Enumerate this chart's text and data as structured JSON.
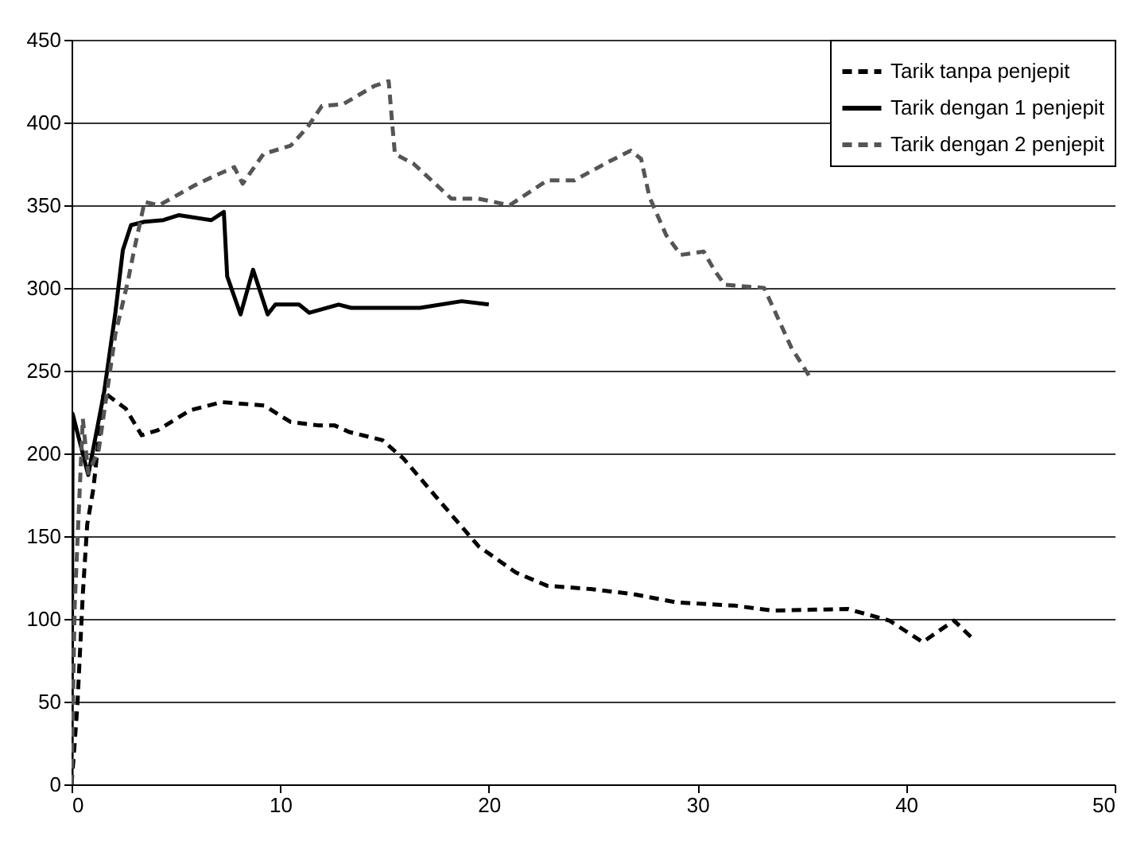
{
  "chart_data": {
    "type": "line",
    "xlim": [
      0,
      50
    ],
    "xticks": [
      0,
      10,
      20,
      30,
      40,
      50
    ],
    "ylim": [
      0,
      450
    ],
    "yticks": [
      0,
      50,
      100,
      150,
      200,
      250,
      300,
      350,
      400,
      450
    ],
    "grid": "y",
    "legend": "top right",
    "marker": "none",
    "series": [
      {
        "name": "Tarik tanpa penjepit",
        "color": "#000000",
        "line_style": "dashed",
        "x": [
          0,
          0.15,
          0.28,
          0.54,
          0.75,
          1.05,
          1.54,
          2.6,
          3.36,
          4.13,
          5.67,
          7.2,
          9.23,
          10.5,
          11.8,
          12.6,
          13.3,
          14.9,
          15.9,
          18.0,
          19.5,
          21.3,
          22.8,
          24.9,
          26.9,
          29.0,
          31.8,
          33.6,
          37.2,
          39.2,
          40.8,
          42.3,
          43.2
        ],
        "values": [
          0,
          25,
          48,
          115,
          157,
          179,
          237,
          227,
          211,
          214,
          226,
          231,
          229,
          219,
          217,
          217,
          213,
          208,
          197,
          166,
          144,
          128,
          120,
          118,
          115,
          110,
          108,
          105,
          106,
          99,
          86,
          99,
          88
        ]
      },
      {
        "name": "Tarik dengan 1 penjepit",
        "color": "#000000",
        "line_style": "solid",
        "x": [
          0,
          0.05,
          0.8,
          1.56,
          2.1,
          2.46,
          2.85,
          3.5,
          4.4,
          5.15,
          6.7,
          7.3,
          7.46,
          8.1,
          8.7,
          9.4,
          9.77,
          10.9,
          11.4,
          12.8,
          13.4,
          16.7,
          18.7,
          20
        ],
        "values": [
          0,
          224,
          187,
          237,
          285,
          323,
          338,
          340,
          341,
          344,
          341,
          346,
          307,
          284,
          311,
          284,
          290,
          290,
          285,
          290,
          288,
          288,
          292,
          290
        ]
      },
      {
        "name": "Tarik dengan 2 penjepit",
        "color": "#555555",
        "line_style": "dashed",
        "x": [
          0,
          0.15,
          0.54,
          0.8,
          1.3,
          2.1,
          2.7,
          3.0,
          3.5,
          4.2,
          5.9,
          6.9,
          7.8,
          8.2,
          9.2,
          10.5,
          11.3,
          12.0,
          13.0,
          14.5,
          15.2,
          15.4,
          15.5,
          16.4,
          18.2,
          19.5,
          21,
          22.8,
          24.1,
          25.7,
          26.8,
          27.3,
          27.7,
          28.5,
          29.2,
          30.3,
          30.8,
          31.3,
          33.2,
          34.5,
          35.4
        ],
        "values": [
          0,
          108,
          221,
          188,
          202,
          272,
          304,
          323,
          352,
          350,
          362,
          368,
          373,
          363,
          381,
          386,
          397,
          410,
          411,
          422,
          425,
          395,
          381,
          375,
          354,
          354,
          350,
          365,
          365,
          376,
          383,
          378,
          355,
          332,
          320,
          322,
          311,
          302,
          300,
          264,
          246
        ]
      }
    ]
  }
}
